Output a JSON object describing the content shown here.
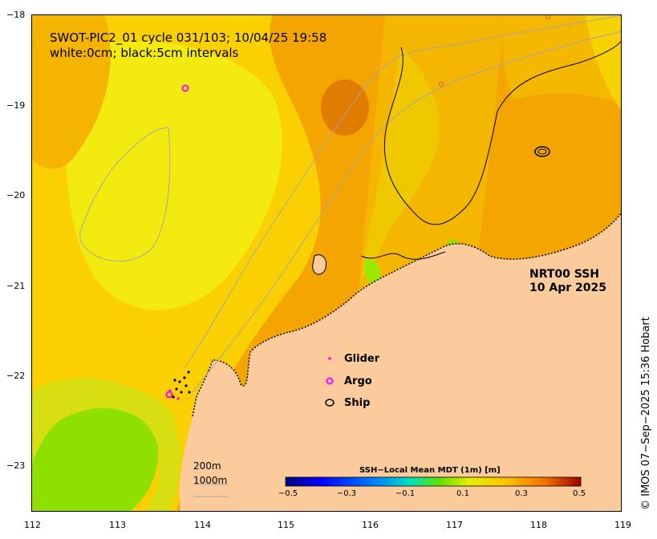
{
  "title": {
    "line1": "SWOT-PIC2_01 cycle 031/103; 10/04/25 19:58",
    "line2": "white:0cm; black:5cm intervals"
  },
  "product": {
    "name": "NRT00 SSH",
    "date": "10 Apr 2025"
  },
  "legend": {
    "items": [
      {
        "label": "Glider",
        "symbol": "dot",
        "color": "#ff00ff"
      },
      {
        "label": "Argo",
        "symbol": "ring",
        "color": "#ff00ff"
      },
      {
        "label": "Ship",
        "symbol": "ellipse",
        "color": "#000000"
      }
    ]
  },
  "scale": {
    "label_200": "200m",
    "label_1000": "1000m"
  },
  "colorbar": {
    "title": "SSH−Local Mean MDT (1m) [m]",
    "ticks": [
      "−0.5",
      "−0.3",
      "−0.1",
      "0.1",
      "0.3",
      "0.5"
    ],
    "range": [
      -0.5,
      0.5
    ]
  },
  "axes": {
    "x_ticks": [
      "112",
      "113",
      "114",
      "115",
      "116",
      "117",
      "118",
      "119"
    ],
    "y_ticks": [
      "−18",
      "−19",
      "−20",
      "−21",
      "−22",
      "−23"
    ]
  },
  "credit": "© IMOS 07−Sep−2025 15:36 Hobart",
  "colors": {
    "land": "#fccb9b",
    "ocean_yellow": "#fbd000",
    "ocean_orange": "#f4a000",
    "ocean_dark": "#e07c00",
    "green": "#8ee000"
  }
}
